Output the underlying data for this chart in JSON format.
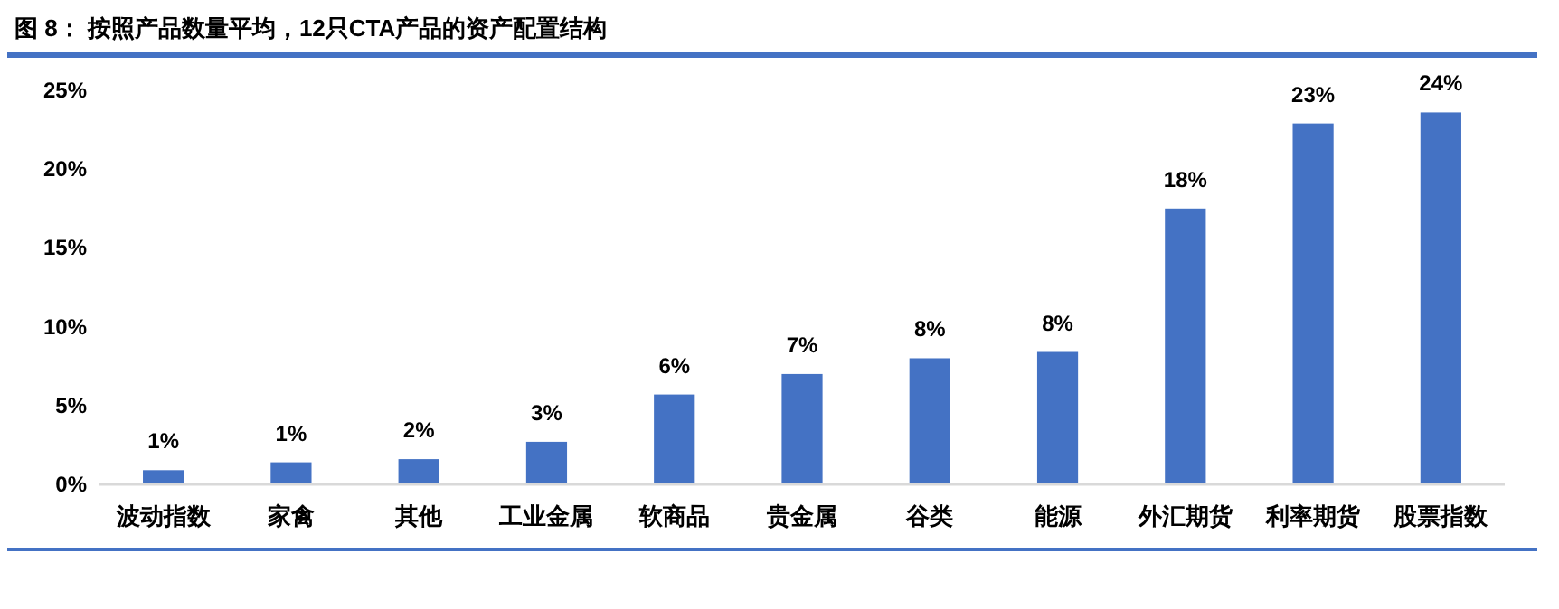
{
  "chart_data": {
    "type": "bar",
    "title": "图 8：   按照产品数量平均，12只CTA产品的资产配置结构",
    "categories": [
      "波动指数",
      "家禽",
      "其他",
      "工业金属",
      "软商品",
      "贵金属",
      "谷类",
      "能源",
      "外汇期货",
      "利率期货",
      "股票指数"
    ],
    "values": [
      0.9,
      1.4,
      1.6,
      2.7,
      5.7,
      7.0,
      8.0,
      8.4,
      17.5,
      22.9,
      23.6
    ],
    "value_labels": [
      "1%",
      "1%",
      "2%",
      "3%",
      "6%",
      "7%",
      "8%",
      "8%",
      "18%",
      "23%",
      "24%"
    ],
    "color": "#4472c4",
    "ylim": [
      0,
      25
    ],
    "yticks": [
      {
        "value": 0,
        "label": "0%"
      },
      {
        "value": 5,
        "label": "5%"
      },
      {
        "value": 10,
        "label": "10%"
      },
      {
        "value": 15,
        "label": "15%"
      },
      {
        "value": 20,
        "label": "20%"
      },
      {
        "value": 25,
        "label": "25%"
      }
    ],
    "grid": false
  }
}
